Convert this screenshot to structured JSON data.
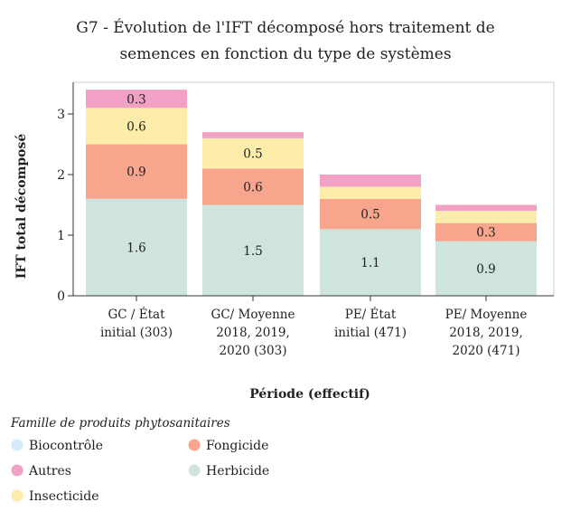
{
  "chart_data": {
    "type": "bar",
    "stacked": true,
    "title": "G7 - Évolution de l'IFT décomposé hors traitement de semences en fonction du type de systèmes",
    "title_lines": [
      "G7 - Évolution de l'IFT décomposé hors traitement de",
      "semences en fonction du type de systèmes"
    ],
    "xlabel": "Période (effectif)",
    "ylabel": "IFT total décomposé",
    "ylim": [
      0,
      3.5
    ],
    "yticks": [
      0,
      1,
      2,
      3
    ],
    "categories": [
      [
        "GC / État",
        "initial (303)"
      ],
      [
        "GC/ Moyenne",
        "2018, 2019,",
        "2020 (303)"
      ],
      [
        "PE/ État",
        "initial (471)"
      ],
      [
        "PE/ Moyenne",
        "2018, 2019,",
        "2020 (471)"
      ]
    ],
    "series": [
      {
        "name": "Herbicide",
        "color": "#cfe4dc",
        "values": [
          1.6,
          1.5,
          1.1,
          0.9
        ],
        "labels": [
          "1.6",
          "1.5",
          "1.1",
          "0.9"
        ]
      },
      {
        "name": "Fongicide",
        "color": "#f8a58e",
        "values": [
          0.9,
          0.6,
          0.5,
          0.3
        ],
        "labels": [
          "0.9",
          "0.6",
          "0.5",
          "0.3"
        ]
      },
      {
        "name": "Insecticide",
        "color": "#fdedaa",
        "values": [
          0.6,
          0.5,
          0.2,
          0.2
        ],
        "labels": [
          "0.6",
          "0.5",
          "",
          ""
        ]
      },
      {
        "name": "Autres",
        "color": "#f2a0c3",
        "values": [
          0.3,
          0.1,
          0.2,
          0.1
        ],
        "labels": [
          "0.3",
          "",
          "",
          ""
        ]
      },
      {
        "name": "Biocontrôle",
        "color": "#d6ecfa",
        "values": [
          0,
          0,
          0,
          0
        ],
        "labels": [
          "",
          "",
          "",
          ""
        ]
      }
    ],
    "legend": {
      "title": "Famille de produits phytosanitaires",
      "placement": "bottom",
      "items": [
        {
          "name": "Biocontrôle",
          "color": "#d6ecfa"
        },
        {
          "name": "Fongicide",
          "color": "#f8a58e"
        },
        {
          "name": "Autres",
          "color": "#f2a0c3"
        },
        {
          "name": "Herbicide",
          "color": "#cfe4dc"
        },
        {
          "name": "Insecticide",
          "color": "#fdedaa"
        }
      ]
    },
    "grid": false
  }
}
